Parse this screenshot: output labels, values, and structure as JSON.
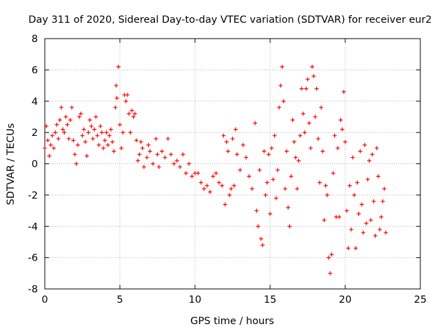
{
  "chart_data": {
    "type": "scatter",
    "title": "Day 311 of 2020, Sidereal Day-to-day VTEC variation (SDTVAR) for receiver eur2",
    "xlabel": "GPS time / hours",
    "ylabel": "SDTVAR / TECUs",
    "xlim": [
      0,
      25
    ],
    "ylim": [
      -8,
      8
    ],
    "xticks": [
      0,
      5,
      10,
      15,
      20,
      25
    ],
    "yticks": [
      -8,
      -6,
      -4,
      -2,
      0,
      2,
      4,
      6,
      8
    ],
    "grid": true,
    "marker": "+",
    "color": "#ff0000",
    "series": [
      {
        "name": "SDTVAR",
        "points": [
          [
            0.0,
            1.0
          ],
          [
            0.1,
            2.4
          ],
          [
            0.2,
            1.5
          ],
          [
            0.3,
            0.5
          ],
          [
            0.4,
            1.2
          ],
          [
            0.5,
            1.8
          ],
          [
            0.6,
            1.0
          ],
          [
            0.7,
            2.0
          ],
          [
            0.8,
            2.5
          ],
          [
            0.9,
            1.6
          ],
          [
            1.0,
            2.8
          ],
          [
            1.1,
            3.6
          ],
          [
            1.2,
            2.2
          ],
          [
            1.3,
            2.0
          ],
          [
            1.4,
            3.0
          ],
          [
            1.5,
            2.5
          ],
          [
            1.6,
            1.6
          ],
          [
            1.7,
            2.8
          ],
          [
            1.8,
            3.6
          ],
          [
            1.9,
            1.5
          ],
          [
            2.0,
            0.6
          ],
          [
            2.1,
            0.0
          ],
          [
            2.2,
            1.2
          ],
          [
            2.3,
            3.0
          ],
          [
            2.4,
            3.2
          ],
          [
            2.5,
            1.8
          ],
          [
            2.6,
            2.2
          ],
          [
            2.7,
            1.4
          ],
          [
            2.8,
            0.5
          ],
          [
            2.9,
            2.0
          ],
          [
            3.0,
            2.8
          ],
          [
            3.1,
            2.4
          ],
          [
            3.2,
            1.6
          ],
          [
            3.3,
            2.2
          ],
          [
            3.4,
            3.0
          ],
          [
            3.5,
            1.8
          ],
          [
            3.6,
            1.2
          ],
          [
            3.7,
            2.4
          ],
          [
            3.8,
            2.0
          ],
          [
            3.9,
            1.0
          ],
          [
            4.0,
            1.5
          ],
          [
            4.1,
            2.0
          ],
          [
            4.2,
            1.2
          ],
          [
            4.3,
            1.8
          ],
          [
            4.4,
            2.2
          ],
          [
            4.5,
            1.4
          ],
          [
            4.6,
            0.8
          ],
          [
            4.7,
            3.6
          ],
          [
            4.75,
            5.0
          ],
          [
            4.8,
            4.2
          ],
          [
            4.9,
            6.2
          ],
          [
            5.0,
            2.5
          ],
          [
            5.1,
            1.0
          ],
          [
            5.2,
            2.0
          ],
          [
            5.3,
            4.4
          ],
          [
            5.4,
            4.0
          ],
          [
            5.5,
            4.4
          ],
          [
            5.6,
            3.2
          ],
          [
            5.7,
            2.0
          ],
          [
            5.8,
            3.4
          ],
          [
            5.9,
            3.0
          ],
          [
            6.0,
            3.2
          ],
          [
            6.1,
            1.5
          ],
          [
            6.2,
            0.2
          ],
          [
            6.3,
            0.6
          ],
          [
            6.4,
            1.4
          ],
          [
            6.5,
            1.0
          ],
          [
            6.6,
            -0.2
          ],
          [
            6.8,
            0.4
          ],
          [
            6.9,
            1.2
          ],
          [
            7.0,
            0.8
          ],
          [
            7.2,
            0.0
          ],
          [
            7.4,
            1.6
          ],
          [
            7.5,
            0.6
          ],
          [
            7.6,
            -0.2
          ],
          [
            7.8,
            0.8
          ],
          [
            8.0,
            0.4
          ],
          [
            8.2,
            1.6
          ],
          [
            8.4,
            0.6
          ],
          [
            8.6,
            0.0
          ],
          [
            8.8,
            0.2
          ],
          [
            9.0,
            -0.2
          ],
          [
            9.2,
            0.6
          ],
          [
            9.4,
            -0.6
          ],
          [
            9.6,
            0.0
          ],
          [
            9.8,
            -0.8
          ],
          [
            10.0,
            -0.6
          ],
          [
            10.2,
            -0.6
          ],
          [
            10.4,
            -1.2
          ],
          [
            10.6,
            -1.6
          ],
          [
            10.8,
            -1.4
          ],
          [
            11.0,
            -1.8
          ],
          [
            11.2,
            -0.8
          ],
          [
            11.4,
            -0.6
          ],
          [
            11.6,
            -1.2
          ],
          [
            11.8,
            -1.4
          ],
          [
            11.9,
            1.8
          ],
          [
            12.0,
            -2.6
          ],
          [
            12.1,
            1.4
          ],
          [
            12.2,
            0.8
          ],
          [
            12.3,
            -2.0
          ],
          [
            12.4,
            -1.6
          ],
          [
            12.5,
            1.6
          ],
          [
            12.6,
            -1.4
          ],
          [
            12.7,
            2.2
          ],
          [
            12.8,
            0.6
          ],
          [
            13.0,
            -0.4
          ],
          [
            13.2,
            1.2
          ],
          [
            13.4,
            0.4
          ],
          [
            13.6,
            -0.8
          ],
          [
            13.8,
            -1.6
          ],
          [
            14.0,
            2.6
          ],
          [
            14.1,
            -3.0
          ],
          [
            14.2,
            -4.0
          ],
          [
            14.3,
            -0.4
          ],
          [
            14.4,
            -4.8
          ],
          [
            14.5,
            -5.2
          ],
          [
            14.6,
            0.8
          ],
          [
            14.7,
            -2.0
          ],
          [
            14.8,
            -1.2
          ],
          [
            14.9,
            0.6
          ],
          [
            15.0,
            -3.2
          ],
          [
            15.1,
            1.0
          ],
          [
            15.2,
            -1.0
          ],
          [
            15.3,
            1.8
          ],
          [
            15.4,
            -2.2
          ],
          [
            15.5,
            -0.4
          ],
          [
            15.6,
            3.6
          ],
          [
            15.7,
            5.0
          ],
          [
            15.8,
            6.2
          ],
          [
            15.9,
            4.0
          ],
          [
            16.0,
            -1.6
          ],
          [
            16.1,
            0.8
          ],
          [
            16.2,
            -2.8
          ],
          [
            16.3,
            -4.0
          ],
          [
            16.4,
            -0.8
          ],
          [
            16.5,
            2.8
          ],
          [
            16.6,
            1.4
          ],
          [
            16.7,
            0.4
          ],
          [
            16.8,
            -1.6
          ],
          [
            16.9,
            0.2
          ],
          [
            17.0,
            1.8
          ],
          [
            17.1,
            4.8
          ],
          [
            17.2,
            3.2
          ],
          [
            17.3,
            2.0
          ],
          [
            17.4,
            4.8
          ],
          [
            17.5,
            5.4
          ],
          [
            17.6,
            2.6
          ],
          [
            17.7,
            1.0
          ],
          [
            17.8,
            6.2
          ],
          [
            17.9,
            5.6
          ],
          [
            18.0,
            3.0
          ],
          [
            18.1,
            4.8
          ],
          [
            18.2,
            1.6
          ],
          [
            18.3,
            -1.2
          ],
          [
            18.4,
            3.6
          ],
          [
            18.5,
            0.8
          ],
          [
            18.6,
            -3.6
          ],
          [
            18.7,
            -1.4
          ],
          [
            18.8,
            -2.0
          ],
          [
            18.9,
            -6.0
          ],
          [
            19.0,
            -7.0
          ],
          [
            19.1,
            -5.8
          ],
          [
            19.2,
            -0.6
          ],
          [
            19.3,
            1.8
          ],
          [
            19.4,
            -3.4
          ],
          [
            19.5,
            1.0
          ],
          [
            19.6,
            -3.4
          ],
          [
            19.7,
            2.8
          ],
          [
            19.8,
            2.2
          ],
          [
            19.9,
            4.6
          ],
          [
            20.0,
            1.4
          ],
          [
            20.1,
            -3.0
          ],
          [
            20.2,
            -5.4
          ],
          [
            20.3,
            -1.4
          ],
          [
            20.4,
            -4.2
          ],
          [
            20.5,
            0.4
          ],
          [
            20.6,
            -2.0
          ],
          [
            20.7,
            -5.4
          ],
          [
            20.8,
            -1.2
          ],
          [
            20.9,
            -3.2
          ],
          [
            21.0,
            0.8
          ],
          [
            21.1,
            -2.6
          ],
          [
            21.2,
            -4.4
          ],
          [
            21.3,
            1.2
          ],
          [
            21.4,
            -3.8
          ],
          [
            21.5,
            -1.0
          ],
          [
            21.6,
            0.2
          ],
          [
            21.7,
            -3.6
          ],
          [
            21.8,
            0.6
          ],
          [
            21.9,
            -2.4
          ],
          [
            22.0,
            -4.6
          ],
          [
            22.1,
            1.0
          ],
          [
            22.2,
            -0.8
          ],
          [
            22.3,
            -4.2
          ],
          [
            22.4,
            -3.4
          ],
          [
            22.5,
            -2.4
          ],
          [
            22.6,
            -1.6
          ],
          [
            22.7,
            -4.4
          ]
        ]
      }
    ]
  }
}
